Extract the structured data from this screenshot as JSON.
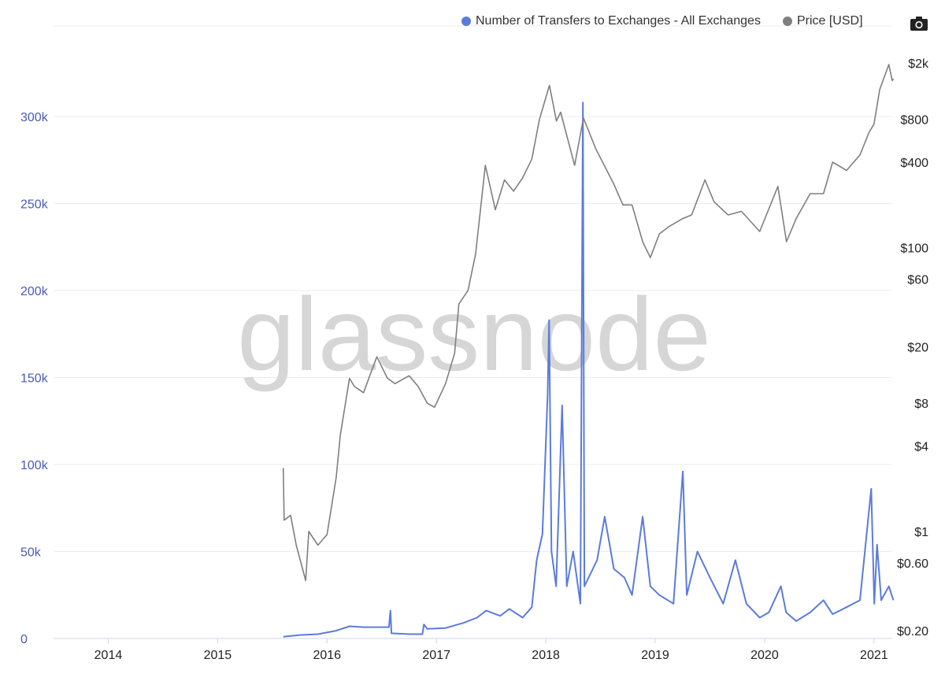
{
  "legend": {
    "series1": "Number of Transfers to Exchanges - All Exchanges",
    "series2": "Price [USD]"
  },
  "watermark": "glassnode",
  "icons": {
    "export": "camera-icon"
  },
  "colors": {
    "transfers": "#5b7bdc",
    "price": "#7f7f7f",
    "left_axis_text": "#4a5bb8",
    "grid": "#ececec"
  },
  "chart_data": {
    "type": "line",
    "title": "",
    "x_range": [
      "2013-07",
      "2021-03"
    ],
    "x_ticks": [
      "2014",
      "2015",
      "2016",
      "2017",
      "2018",
      "2019",
      "2020",
      "2021"
    ],
    "y_left": {
      "label": "",
      "range": [
        0,
        320000
      ],
      "ticks": [
        0,
        50000,
        100000,
        150000,
        200000,
        250000,
        300000
      ],
      "tick_labels": [
        "0",
        "50k",
        "100k",
        "150k",
        "200k",
        "250k",
        "300k"
      ]
    },
    "y_right": {
      "label": "",
      "scale": "log",
      "ticks": [
        0.2,
        0.6,
        1,
        4,
        8,
        20,
        60,
        100,
        400,
        800,
        2000
      ],
      "tick_labels": [
        "$0.20",
        "$0.60",
        "$1",
        "$4",
        "$8",
        "$20",
        "$60",
        "$100",
        "$400",
        "$800",
        "$2k"
      ]
    },
    "grid": true,
    "legend_position": "top-right",
    "series": [
      {
        "name": "Number of Transfers to Exchanges - All Exchanges",
        "axis": "left",
        "points": [
          [
            "2015-08-07",
            1000
          ],
          [
            "2015-10-01",
            2000
          ],
          [
            "2015-12-01",
            2500
          ],
          [
            "2016-02-01",
            4500
          ],
          [
            "2016-03-15",
            7000
          ],
          [
            "2016-05-01",
            6500
          ],
          [
            "2016-07-25",
            6500
          ],
          [
            "2016-07-30",
            16000
          ],
          [
            "2016-08-03",
            3000
          ],
          [
            "2016-10-01",
            2500
          ],
          [
            "2016-11-15",
            2500
          ],
          [
            "2016-11-20",
            8000
          ],
          [
            "2016-12-01",
            5500
          ],
          [
            "2017-02-01",
            6000
          ],
          [
            "2017-04-01",
            9000
          ],
          [
            "2017-05-15",
            12000
          ],
          [
            "2017-06-15",
            16000
          ],
          [
            "2017-08-01",
            13000
          ],
          [
            "2017-09-01",
            17000
          ],
          [
            "2017-10-15",
            12000
          ],
          [
            "2017-11-15",
            18000
          ],
          [
            "2017-12-01",
            45000
          ],
          [
            "2017-12-20",
            60000
          ],
          [
            "2018-01-07",
            140000
          ],
          [
            "2018-01-12",
            183000
          ],
          [
            "2018-01-20",
            50000
          ],
          [
            "2018-02-05",
            30000
          ],
          [
            "2018-02-25",
            134000
          ],
          [
            "2018-03-10",
            30000
          ],
          [
            "2018-04-01",
            50000
          ],
          [
            "2018-04-25",
            20000
          ],
          [
            "2018-05-03",
            308000
          ],
          [
            "2018-05-08",
            30000
          ],
          [
            "2018-06-20",
            45000
          ],
          [
            "2018-07-15",
            70000
          ],
          [
            "2018-08-15",
            40000
          ],
          [
            "2018-09-20",
            35000
          ],
          [
            "2018-10-15",
            25000
          ],
          [
            "2018-11-20",
            70000
          ],
          [
            "2018-12-15",
            30000
          ],
          [
            "2019-01-15",
            25000
          ],
          [
            "2019-03-01",
            20000
          ],
          [
            "2019-04-02",
            96000
          ],
          [
            "2019-04-15",
            25000
          ],
          [
            "2019-05-20",
            50000
          ],
          [
            "2019-07-01",
            35000
          ],
          [
            "2019-08-15",
            20000
          ],
          [
            "2019-09-25",
            45000
          ],
          [
            "2019-11-01",
            20000
          ],
          [
            "2019-12-15",
            12000
          ],
          [
            "2020-01-15",
            15000
          ],
          [
            "2020-02-25",
            30000
          ],
          [
            "2020-03-12",
            15000
          ],
          [
            "2020-04-15",
            10000
          ],
          [
            "2020-06-01",
            15000
          ],
          [
            "2020-07-15",
            22000
          ],
          [
            "2020-08-15",
            14000
          ],
          [
            "2020-10-01",
            18000
          ],
          [
            "2020-11-15",
            22000
          ],
          [
            "2020-12-22",
            86000
          ],
          [
            "2021-01-02",
            20000
          ],
          [
            "2021-01-11",
            54000
          ],
          [
            "2021-01-25",
            22000
          ],
          [
            "2021-02-20",
            30000
          ],
          [
            "2021-03-05",
            22000
          ]
        ]
      },
      {
        "name": "Price [USD]",
        "axis": "right",
        "points": [
          [
            "2015-08-07",
            2.8
          ],
          [
            "2015-08-10",
            1.2
          ],
          [
            "2015-09-01",
            1.3
          ],
          [
            "2015-09-20",
            0.8
          ],
          [
            "2015-10-21",
            0.45
          ],
          [
            "2015-11-01",
            1.0
          ],
          [
            "2015-12-01",
            0.8
          ],
          [
            "2016-01-01",
            0.95
          ],
          [
            "2016-02-01",
            2.4
          ],
          [
            "2016-02-15",
            4.8
          ],
          [
            "2016-03-15",
            12.0
          ],
          [
            "2016-04-01",
            10.5
          ],
          [
            "2016-05-01",
            9.5
          ],
          [
            "2016-06-15",
            17.0
          ],
          [
            "2016-07-20",
            12.0
          ],
          [
            "2016-08-15",
            11.0
          ],
          [
            "2016-10-01",
            12.5
          ],
          [
            "2016-11-01",
            10.5
          ],
          [
            "2016-12-01",
            8.0
          ],
          [
            "2016-12-25",
            7.5
          ],
          [
            "2017-02-01",
            11.0
          ],
          [
            "2017-03-01",
            18.0
          ],
          [
            "2017-03-15",
            40.0
          ],
          [
            "2017-04-15",
            50.0
          ],
          [
            "2017-05-10",
            90.0
          ],
          [
            "2017-06-12",
            380.0
          ],
          [
            "2017-07-15",
            185.0
          ],
          [
            "2017-08-15",
            300.0
          ],
          [
            "2017-09-15",
            250.0
          ],
          [
            "2017-10-15",
            310.0
          ],
          [
            "2017-11-15",
            420.0
          ],
          [
            "2017-12-10",
            800.0
          ],
          [
            "2018-01-13",
            1390.0
          ],
          [
            "2018-02-06",
            780.0
          ],
          [
            "2018-02-20",
            900.0
          ],
          [
            "2018-04-06",
            380.0
          ],
          [
            "2018-05-05",
            820.0
          ],
          [
            "2018-06-15",
            500.0
          ],
          [
            "2018-08-15",
            280.0
          ],
          [
            "2018-09-15",
            200.0
          ],
          [
            "2018-10-15",
            200.0
          ],
          [
            "2018-11-20",
            110.0
          ],
          [
            "2018-12-15",
            85.0
          ],
          [
            "2019-01-15",
            125.0
          ],
          [
            "2019-02-15",
            140.0
          ],
          [
            "2019-04-01",
            160.0
          ],
          [
            "2019-05-01",
            170.0
          ],
          [
            "2019-06-15",
            300.0
          ],
          [
            "2019-07-15",
            210.0
          ],
          [
            "2019-09-01",
            170.0
          ],
          [
            "2019-10-15",
            180.0
          ],
          [
            "2019-12-15",
            130.0
          ],
          [
            "2020-02-15",
            270.0
          ],
          [
            "2020-03-13",
            110.0
          ],
          [
            "2020-04-15",
            160.0
          ],
          [
            "2020-06-01",
            240.0
          ],
          [
            "2020-07-15",
            240.0
          ],
          [
            "2020-08-15",
            400.0
          ],
          [
            "2020-10-01",
            350.0
          ],
          [
            "2020-11-15",
            450.0
          ],
          [
            "2020-12-15",
            650.0
          ],
          [
            "2021-01-01",
            740.0
          ],
          [
            "2021-01-20",
            1300.0
          ],
          [
            "2021-02-20",
            1950.0
          ],
          [
            "2021-03-01",
            1500.0
          ],
          [
            "2021-03-05",
            1550.0
          ]
        ]
      }
    ]
  }
}
